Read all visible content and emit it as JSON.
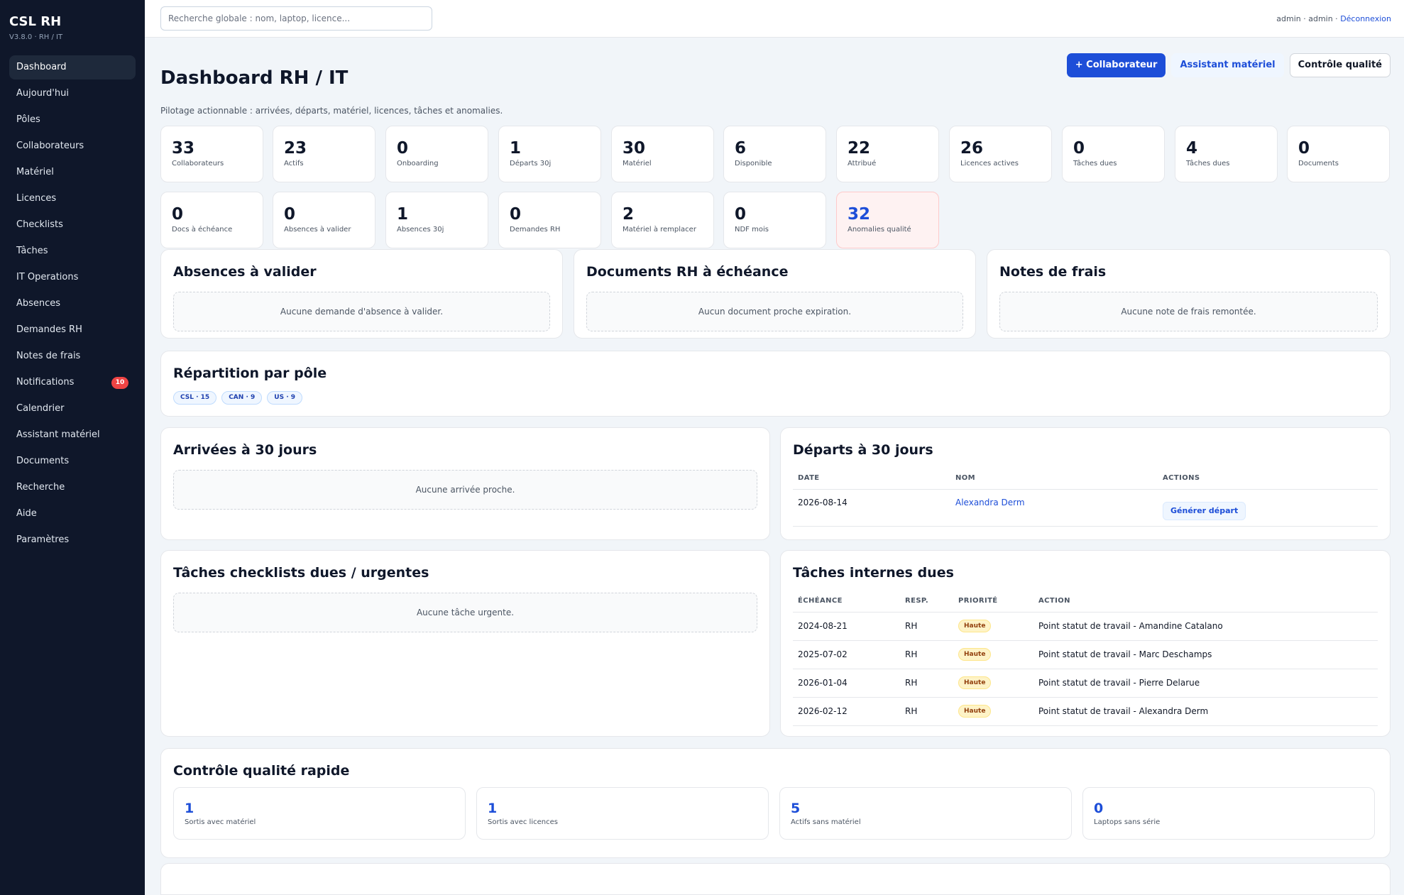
{
  "sidebar": {
    "brand": "CSL RH",
    "version": "V3.8.0 · RH / IT",
    "items": [
      {
        "label": "Dashboard"
      },
      {
        "label": "Aujourd'hui"
      },
      {
        "label": "Pôles"
      },
      {
        "label": "Collaborateurs"
      },
      {
        "label": "Matériel"
      },
      {
        "label": "Licences"
      },
      {
        "label": "Checklists"
      },
      {
        "label": "Tâches"
      },
      {
        "label": "IT Operations"
      },
      {
        "label": "Absences"
      },
      {
        "label": "Demandes RH"
      },
      {
        "label": "Notes de frais"
      },
      {
        "label": "Notifications",
        "badge": "10"
      },
      {
        "label": "Calendrier"
      },
      {
        "label": "Assistant matériel"
      },
      {
        "label": "Documents"
      },
      {
        "label": "Recherche"
      },
      {
        "label": "Aide"
      },
      {
        "label": "Paramètres"
      }
    ]
  },
  "topbar": {
    "search_placeholder": "Recherche globale : nom, laptop, licence...",
    "user": "admin · admin · ",
    "logout": "Déconnexion"
  },
  "header": {
    "title": "Dashboard RH / IT",
    "subtitle": "Pilotage actionnable : arrivées, départs, matériel, licences, tâches et anomalies.",
    "add_button": "+ Collaborateur",
    "assistant_button": "Assistant matériel",
    "quality_button": "Contrôle qualité"
  },
  "kpis_row1": [
    {
      "value": "33",
      "label": "Collaborateurs"
    },
    {
      "value": "23",
      "label": "Actifs"
    },
    {
      "value": "0",
      "label": "Onboarding"
    },
    {
      "value": "1",
      "label": "Départs 30j"
    },
    {
      "value": "30",
      "label": "Matériel"
    },
    {
      "value": "6",
      "label": "Disponible"
    },
    {
      "value": "22",
      "label": "Attribué"
    },
    {
      "value": "26",
      "label": "Licences actives"
    },
    {
      "value": "0",
      "label": "Tâches dues"
    },
    {
      "value": "4",
      "label": "Tâches dues"
    },
    {
      "value": "0",
      "label": "Documents"
    }
  ],
  "kpis_row2": [
    {
      "value": "0",
      "label": "Docs à échéance"
    },
    {
      "value": "0",
      "label": "Absences à valider"
    },
    {
      "value": "1",
      "label": "Absences 30j"
    },
    {
      "value": "0",
      "label": "Demandes RH"
    },
    {
      "value": "2",
      "label": "Matériel à remplacer"
    },
    {
      "value": "0",
      "label": "NDF mois"
    },
    {
      "value": "32",
      "label": "Anomalies qualité"
    }
  ],
  "panels": {
    "absences": {
      "title": "Absences à valider",
      "empty": "Aucune demande d'absence à valider."
    },
    "documents": {
      "title": "Documents RH à échéance",
      "empty": "Aucun document proche expiration."
    },
    "ndf": {
      "title": "Notes de frais",
      "empty": "Aucune note de frais remontée."
    },
    "repartition": {
      "title": "Répartition par pôle",
      "tags": [
        "CSL · 15",
        "CAN · 9",
        "US · 9"
      ]
    },
    "arrivees": {
      "title": "Arrivées à 30 jours",
      "empty": "Aucune arrivée proche."
    },
    "departs": {
      "title": "Départs à 30 jours",
      "columns": [
        "DATE",
        "NOM",
        "ACTIONS"
      ],
      "rows": [
        {
          "date": "2026-08-14",
          "name": "Alexandra Derm",
          "action": "Générer départ"
        }
      ]
    },
    "checklists": {
      "title": "Tâches checklists dues / urgentes",
      "empty": "Aucune tâche urgente."
    },
    "internes": {
      "title": "Tâches internes dues",
      "columns": [
        "ÉCHÉANCE",
        "RESP.",
        "PRIORITÉ",
        "ACTION"
      ],
      "rows": [
        {
          "date": "2024-08-21",
          "resp": "RH",
          "prio": "Haute",
          "action": "Point statut de travail - Amandine Catalano"
        },
        {
          "date": "2025-07-02",
          "resp": "RH",
          "prio": "Haute",
          "action": "Point statut de travail - Marc Deschamps"
        },
        {
          "date": "2026-01-04",
          "resp": "RH",
          "prio": "Haute",
          "action": "Point statut de travail - Pierre Delarue"
        },
        {
          "date": "2026-02-12",
          "resp": "RH",
          "prio": "Haute",
          "action": "Point statut de travail - Alexandra Derm"
        }
      ]
    },
    "qc": {
      "title": "Contrôle qualité rapide",
      "cards": [
        {
          "value": "1",
          "label": "Sortis avec matériel"
        },
        {
          "value": "1",
          "label": "Sortis avec licences"
        },
        {
          "value": "5",
          "label": "Actifs sans matériel"
        },
        {
          "value": "0",
          "label": "Laptops sans série"
        }
      ]
    }
  }
}
